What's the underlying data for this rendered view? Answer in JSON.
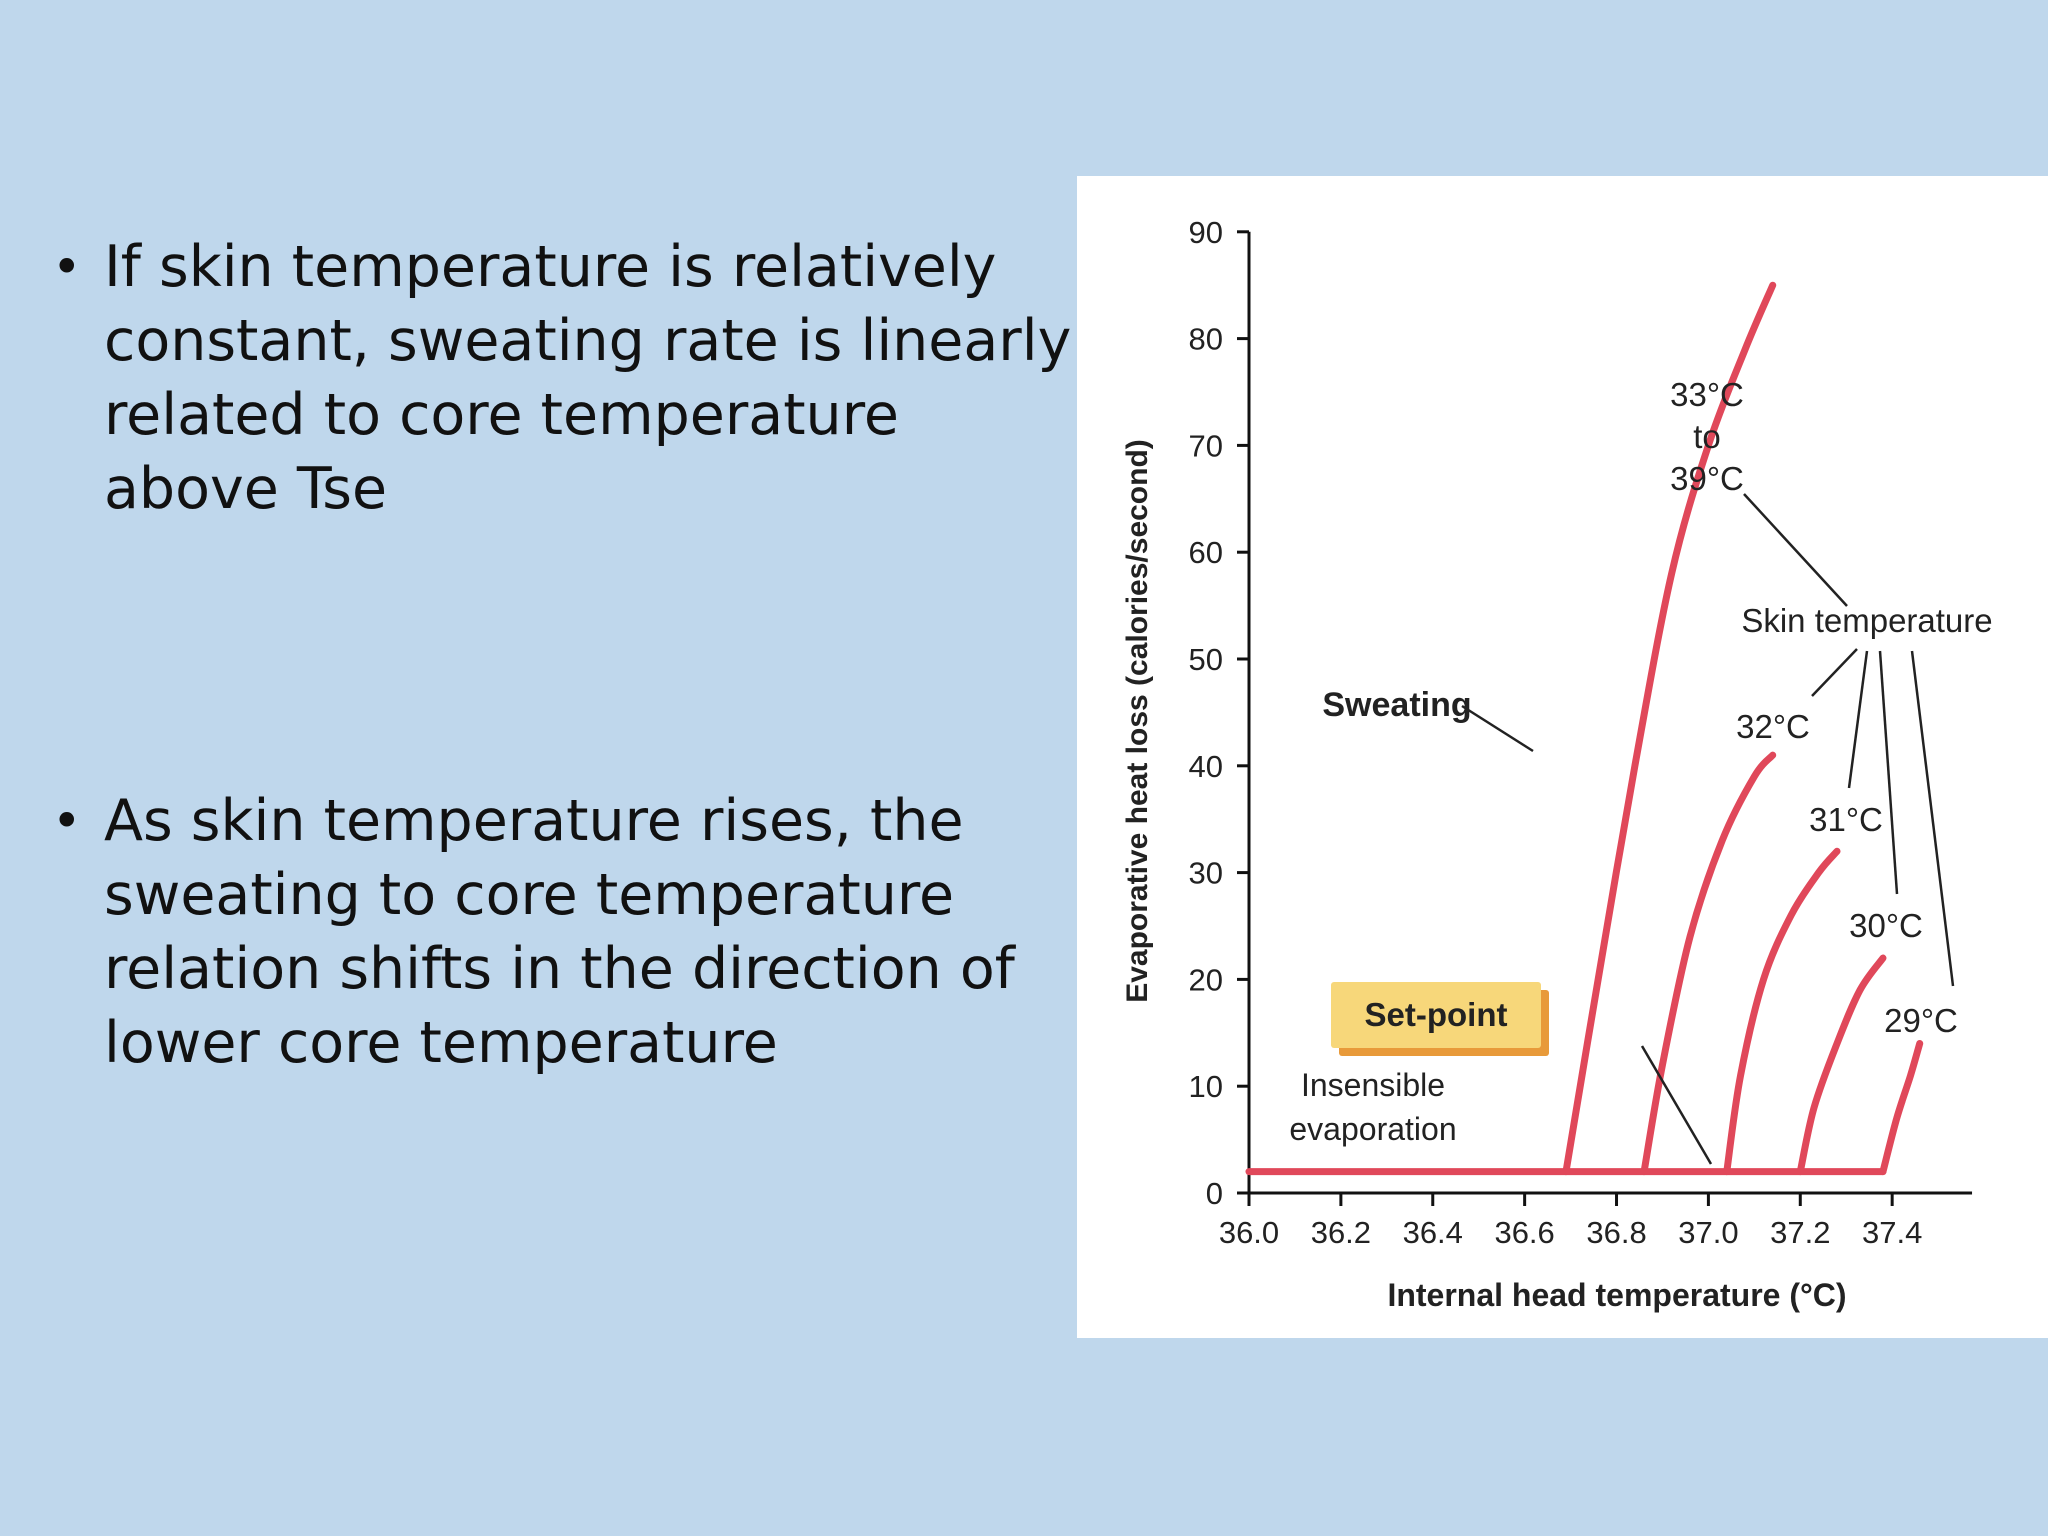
{
  "slide": {
    "bullets": [
      "If skin temperature is relatively constant, sweating rate is linearly related to core temperature above Tse",
      "As skin temperature rises, the sweating to core temperature relation shifts in the direction of lower core temperature"
    ],
    "bullet_glyph": "•"
  },
  "chart_data": {
    "type": "line",
    "xlabel": "Internal head temperature (°C)",
    "ylabel": "Evaporative heat loss (calories/second)",
    "xlim": [
      36.0,
      37.6
    ],
    "ylim": [
      0,
      90
    ],
    "x_ticks": [
      "36.0",
      "36.2",
      "36.4",
      "36.6",
      "36.8",
      "37.0",
      "37.2",
      "37.4"
    ],
    "y_ticks": [
      "0",
      "10",
      "20",
      "30",
      "40",
      "50",
      "60",
      "70",
      "80",
      "90"
    ],
    "baseline": {
      "y": 2,
      "x": [
        36.0,
        37.38
      ]
    },
    "series": [
      {
        "name": "33°C to 39°C",
        "x": [
          36.69,
          36.76,
          36.84,
          36.92,
          37.0,
          37.08,
          37.14
        ],
        "y": [
          2,
          20,
          40,
          58,
          70,
          79,
          85
        ]
      },
      {
        "name": "32°C",
        "x": [
          36.86,
          36.9,
          36.96,
          37.03,
          37.1,
          37.14
        ],
        "y": [
          2,
          12,
          24,
          33,
          39,
          41
        ]
      },
      {
        "name": "31°C",
        "x": [
          37.04,
          37.07,
          37.12,
          37.18,
          37.24,
          37.28
        ],
        "y": [
          2,
          11,
          20,
          26,
          30,
          32
        ]
      },
      {
        "name": "30°C",
        "x": [
          37.2,
          37.23,
          37.28,
          37.33,
          37.38
        ],
        "y": [
          2,
          8,
          14,
          19,
          22
        ]
      },
      {
        "name": "29°C",
        "x": [
          37.38,
          37.41,
          37.44,
          37.46
        ],
        "y": [
          2,
          7,
          11,
          14
        ]
      }
    ],
    "annotations": {
      "sweating": "Sweating",
      "skin_temperature": "Skin temperature",
      "set_point": "Set-point",
      "insensible_line1": "Insensible",
      "insensible_line2": "evaporation",
      "label_33_line1": "33°C",
      "label_33_line2": "to",
      "label_33_line3": "39°C",
      "label_32": "32°C",
      "label_31": "31°C",
      "label_30": "30°C",
      "label_29": "29°C"
    },
    "colors": {
      "curve": "#e0485a",
      "axis": "#111111",
      "set_point_box": "#f7d77a",
      "set_point_shadow": "#e89a3a"
    },
    "grid": false,
    "legend": "none"
  }
}
